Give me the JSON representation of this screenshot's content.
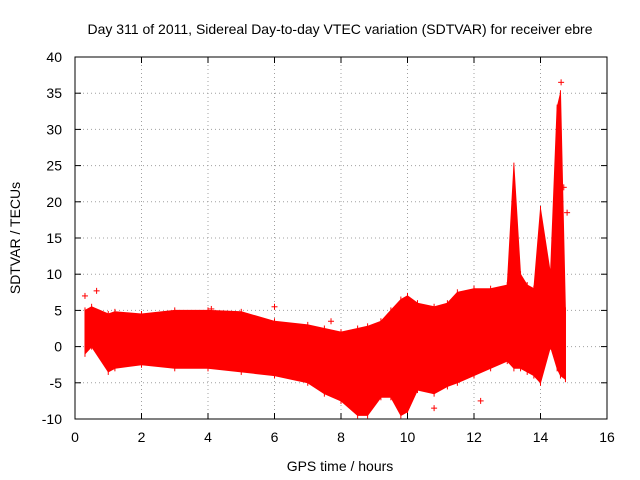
{
  "chart_data": {
    "type": "scatter",
    "title": "Day 311 of 2011, Sidereal Day-to-day VTEC variation (SDTVAR) for receiver ebre",
    "xlabel": "GPS time / hours",
    "ylabel": "SDTVAR / TECUs",
    "xlim": [
      0,
      16
    ],
    "ylim": [
      -10,
      40
    ],
    "xticks": [
      0,
      2,
      4,
      6,
      8,
      10,
      12,
      14,
      16
    ],
    "yticks": [
      -10,
      -5,
      0,
      5,
      10,
      15,
      20,
      25,
      30,
      35,
      40
    ],
    "grid": true,
    "point_marker": "+",
    "color": "#ff0000",
    "series": [
      {
        "name": "SDTVAR",
        "envelope": {
          "x": [
            0.3,
            0.5,
            1.0,
            1.2,
            2.0,
            3.0,
            4.0,
            5.0,
            6.0,
            7.0,
            7.5,
            8.0,
            8.5,
            8.8,
            9.2,
            9.5,
            9.8,
            10.0,
            10.3,
            10.8,
            11.2,
            11.5,
            12.0,
            12.5,
            13.0,
            13.2,
            13.4,
            13.6,
            13.8,
            14.0,
            14.3,
            14.5,
            14.6,
            14.75
          ],
          "upper": [
            5.0,
            5.5,
            4.5,
            4.8,
            4.5,
            5.0,
            5.0,
            4.8,
            3.5,
            3.0,
            2.5,
            2.0,
            2.5,
            2.8,
            3.5,
            5.0,
            6.5,
            7.0,
            6.0,
            5.5,
            6.0,
            7.5,
            8.0,
            8.0,
            8.5,
            25.0,
            10.0,
            8.5,
            8.0,
            19.0,
            10.0,
            33.0,
            35.0,
            5.0
          ],
          "lower": [
            -1.0,
            0.0,
            -3.5,
            -3.0,
            -2.5,
            -3.0,
            -3.0,
            -3.5,
            -4.0,
            -5.0,
            -6.5,
            -7.5,
            -9.5,
            -9.5,
            -7.0,
            -7.0,
            -9.5,
            -9.0,
            -6.0,
            -6.5,
            -5.5,
            -5.0,
            -4.0,
            -3.0,
            -2.0,
            -3.0,
            -3.0,
            -3.5,
            -4.0,
            -5.0,
            0.0,
            -3.0,
            -4.0,
            -4.5
          ]
        },
        "outliers": {
          "x": [
            0.3,
            0.65,
            4.1,
            6.0,
            7.7,
            12.2,
            10.8,
            14.62,
            14.8,
            14.55,
            14.7
          ],
          "y": [
            7.0,
            7.7,
            5.2,
            5.5,
            3.5,
            -7.5,
            -8.5,
            36.5,
            18.5,
            28.0,
            22.0
          ]
        }
      }
    ]
  }
}
